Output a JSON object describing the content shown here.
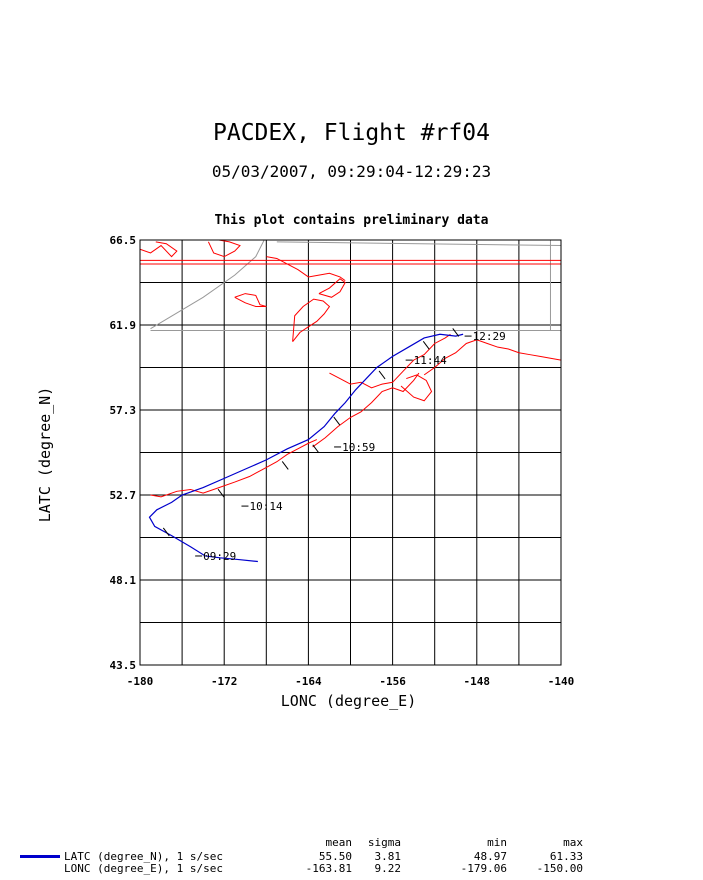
{
  "header": {
    "title": "PACDEX, Flight #rf04",
    "subtitle": "05/03/2007, 09:29:04-12:29:23",
    "note": "This plot contains preliminary data"
  },
  "chart_data": {
    "type": "line",
    "xlabel": "LONC (degree_E)",
    "ylabel": "LATC (degree_N)",
    "xlim": [
      -180,
      -140
    ],
    "ylim": [
      43.5,
      66.5
    ],
    "xticks": [
      "-180",
      "-172",
      "-164",
      "-156",
      "-148",
      "-140"
    ],
    "yticks": [
      "43.5",
      "48.1",
      "52.7",
      "57.3",
      "61.9",
      "66.5"
    ],
    "grid": true,
    "colors": {
      "track": "#0000cc",
      "coast": "#ff0000",
      "border": "#999999",
      "grid": "#000000"
    },
    "track": {
      "name": "flight-track",
      "x": [
        -168.8,
        -170.5,
        -172.4,
        -173.8,
        -175.2,
        -177.0,
        -178.6,
        -179.1,
        -178.4,
        -177.0,
        -176.0,
        -174.0,
        -172.0,
        -170.0,
        -168.0,
        -166.0,
        -164.0,
        -162.5,
        -161.5,
        -160.5,
        -159.5,
        -158.5,
        -157.5,
        -156.0,
        -154.5,
        -153.0,
        -151.5,
        -150.0,
        -149.3
      ],
      "y": [
        49.1,
        49.2,
        49.3,
        49.4,
        49.9,
        50.5,
        51.0,
        51.5,
        51.9,
        52.3,
        52.7,
        53.1,
        53.6,
        54.1,
        54.6,
        55.2,
        55.7,
        56.4,
        57.1,
        57.7,
        58.4,
        59.0,
        59.6,
        60.2,
        60.7,
        61.2,
        61.4,
        61.3,
        61.4
      ]
    },
    "time_labels": [
      {
        "text": "09:29",
        "x": -174.0,
        "y": 49.4
      },
      {
        "text": "10:14",
        "x": -169.6,
        "y": 52.1
      },
      {
        "text": "10:59",
        "x": -160.8,
        "y": 55.3
      },
      {
        "text": "11:44",
        "x": -154.0,
        "y": 60.0
      },
      {
        "text": "12:29",
        "x": -148.4,
        "y": 61.3
      }
    ],
    "tick_marks": [
      {
        "x": -177.5,
        "y": 50.7
      },
      {
        "x": -172.3,
        "y": 52.8
      },
      {
        "x": -166.2,
        "y": 54.3
      },
      {
        "x": -163.3,
        "y": 55.2
      },
      {
        "x": -161.3,
        "y": 56.7
      },
      {
        "x": -157.0,
        "y": 59.2
      },
      {
        "x": -152.8,
        "y": 60.8
      },
      {
        "x": -150.0,
        "y": 61.5
      }
    ],
    "coast": [
      {
        "x": [
          -179.0,
          -178.0,
          -176.5,
          -175.2,
          -174.0,
          -172.5,
          -171.0,
          -169.6,
          -168.3,
          -167.0,
          -166.0,
          -165.0,
          -164.0,
          -163.2
        ],
        "y": [
          52.7,
          52.6,
          52.9,
          53.0,
          52.8,
          53.1,
          53.4,
          53.7,
          54.1,
          54.5,
          54.9,
          55.2,
          55.5,
          55.7
        ]
      },
      {
        "x": [
          -163.6,
          -162.4,
          -161.2,
          -160.0,
          -159.0,
          -158.0,
          -157.0,
          -156.0,
          -155.0,
          -154.0,
          -153.5
        ],
        "y": [
          55.3,
          55.8,
          56.4,
          56.9,
          57.2,
          57.7,
          58.3,
          58.5,
          58.3,
          58.9,
          59.3
        ]
      },
      {
        "x": [
          -155.2,
          -154.0,
          -153.0,
          -152.3,
          -152.8,
          -153.7,
          -154.7
        ],
        "y": [
          58.6,
          58.0,
          57.8,
          58.3,
          58.9,
          59.2,
          59.0
        ]
      },
      {
        "x": [
          -153.0,
          -152.0,
          -151.0,
          -150.0,
          -149.0,
          -148.0,
          -147.0,
          -146.0,
          -145.0,
          -144.0,
          -143.0,
          -142.0,
          -141.0,
          -140.0
        ],
        "y": [
          59.2,
          59.6,
          60.1,
          60.4,
          60.9,
          61.1,
          60.9,
          60.7,
          60.6,
          60.4,
          60.3,
          60.2,
          60.1,
          60.0
        ]
      },
      {
        "x": [
          -162.0,
          -161.0,
          -160.0,
          -159.0,
          -158.0,
          -157.0,
          -156.0,
          -155.0,
          -154.0,
          -153.0,
          -152.0,
          -151.0,
          -150.5
        ],
        "y": [
          59.3,
          59.0,
          58.7,
          58.8,
          58.5,
          58.7,
          58.8,
          59.4,
          60.0,
          60.3,
          60.9,
          61.2,
          61.4
        ]
      },
      {
        "x": [
          -165.5,
          -164.8,
          -164.0,
          -163.2,
          -162.5,
          -162.0,
          -162.6,
          -163.5,
          -164.5,
          -165.3,
          -165.5
        ],
        "y": [
          61.0,
          61.5,
          61.8,
          62.1,
          62.5,
          62.9,
          63.2,
          63.3,
          62.9,
          62.4,
          61.0
        ]
      },
      {
        "x": [
          -163.0,
          -162.0,
          -161.0,
          -160.5,
          -161.0,
          -161.8,
          -163.0
        ],
        "y": [
          63.6,
          63.9,
          64.4,
          64.2,
          63.7,
          63.4,
          63.6
        ]
      },
      {
        "x": [
          -168.0,
          -167.0,
          -166.0,
          -165.0,
          -164.0,
          -163.0,
          -162.0,
          -161.0,
          -160.5
        ],
        "y": [
          65.6,
          65.5,
          65.2,
          64.9,
          64.5,
          64.6,
          64.7,
          64.5,
          64.3
        ]
      },
      {
        "x": [
          -171.0,
          -170.0,
          -169.0,
          -168.6,
          -168.0,
          -169.0,
          -170.0,
          -171.0
        ],
        "y": [
          63.4,
          63.6,
          63.5,
          63.0,
          62.9,
          62.9,
          63.1,
          63.4
        ]
      },
      {
        "x": [
          -180.0,
          -179.0,
          -178.0,
          -177.0,
          -176.5,
          -177.5,
          -178.5
        ],
        "y": [
          66.0,
          65.8,
          66.2,
          65.6,
          65.9,
          66.3,
          66.4
        ]
      },
      {
        "x": [
          -173.5,
          -173.0,
          -172.0,
          -171.0,
          -170.5,
          -171.5,
          -172.5
        ],
        "y": [
          66.4,
          65.8,
          65.6,
          65.9,
          66.2,
          66.4,
          66.5
        ]
      }
    ],
    "parallels": [
      65.4,
      65.2
    ],
    "borders": [
      {
        "x": [
          -179.0,
          -174.0,
          -171.0,
          -169.0,
          -168.2
        ],
        "y": [
          61.7,
          63.4,
          64.6,
          65.6,
          66.5
        ]
      },
      {
        "x": [
          -179.0,
          -140.0
        ],
        "y": [
          61.6,
          61.6
        ]
      },
      {
        "x": [
          -141.0,
          -141.0
        ],
        "y": [
          66.5,
          61.6
        ]
      },
      {
        "x": [
          -167.0,
          -140.0
        ],
        "y": [
          66.4,
          66.2
        ]
      }
    ]
  },
  "legend": {
    "headers": [
      "mean",
      "sigma",
      "min",
      "max"
    ],
    "rows": [
      {
        "label": "LATC (degree_N), 1 s/sec",
        "values": [
          "55.50",
          "3.81",
          "48.97",
          "61.33"
        ]
      },
      {
        "label": "LONC (degree_E), 1 s/sec",
        "values": [
          "-163.81",
          "9.22",
          "-179.06",
          "-150.00"
        ]
      }
    ]
  }
}
